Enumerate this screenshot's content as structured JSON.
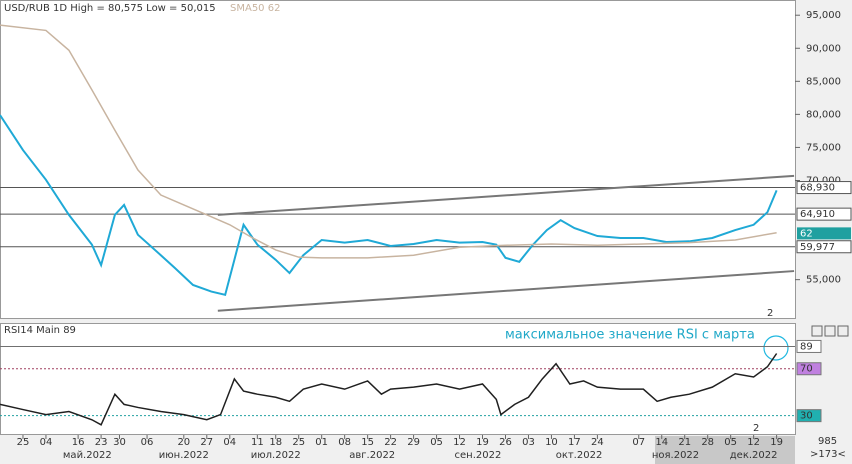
{
  "chart_data": [
    {
      "type": "line",
      "title": "USD/RUB 1D High = 80,575 Low = 50,015",
      "sma_legend": "SMA50 62",
      "xlim": [
        0,
        173
      ],
      "ylim": [
        49.2,
        97.3
      ],
      "yticks": [
        {
          "value": 95,
          "label": "95,000"
        },
        {
          "value": 90,
          "label": "90,000"
        },
        {
          "value": 85,
          "label": "85,000"
        },
        {
          "value": 80,
          "label": "80,000"
        },
        {
          "value": 75,
          "label": "75,000"
        },
        {
          "value": 70,
          "label": "70,000"
        },
        {
          "value": 55,
          "label": "55,000"
        }
      ],
      "series": [
        {
          "name": "USD/RUB",
          "color": "#1fa9d6",
          "x": [
            0,
            5,
            10,
            15,
            20,
            22,
            25,
            27,
            30,
            35,
            38,
            42,
            46,
            49,
            51,
            53,
            56,
            60,
            63,
            66,
            70,
            75,
            80,
            85,
            90,
            95,
            100,
            105,
            108,
            110,
            113,
            116,
            119,
            122,
            125,
            130,
            135,
            140,
            145,
            150,
            155,
            160,
            164,
            167,
            169
          ],
          "values": [
            79.9,
            74.6,
            70.1,
            64.8,
            60.3,
            57.2,
            64.8,
            66.3,
            61.8,
            58.7,
            56.8,
            54.2,
            53.2,
            52.7,
            58.0,
            63.3,
            60.3,
            58.0,
            56.0,
            58.7,
            61.0,
            60.6,
            61.0,
            60.1,
            60.4,
            61.0,
            60.6,
            60.7,
            60.3,
            58.3,
            57.7,
            60.3,
            62.5,
            64.0,
            62.8,
            61.6,
            61.3,
            61.3,
            60.7,
            60.8,
            61.3,
            62.5,
            63.3,
            65.2,
            68.5
          ]
        },
        {
          "name": "SMA50",
          "color": "#c8b4a0",
          "last": 62,
          "x": [
            0,
            10,
            15,
            20,
            25,
            30,
            35,
            40,
            45,
            50,
            55,
            60,
            65,
            70,
            80,
            90,
            100,
            110,
            120,
            130,
            140,
            150,
            160,
            169
          ],
          "values": [
            93.5,
            92.7,
            89.7,
            83.7,
            77.6,
            71.6,
            67.8,
            66.3,
            64.8,
            63.3,
            61.3,
            59.5,
            58.4,
            58.3,
            58.3,
            58.7,
            59.9,
            60.2,
            60.4,
            60.2,
            60.4,
            60.6,
            61.0,
            62.1
          ]
        }
      ],
      "levels": [
        {
          "value": 68.93,
          "label": "68,930"
        },
        {
          "value": 64.91,
          "label": "64,910"
        },
        {
          "value": 59.977,
          "label": "59,977"
        }
      ],
      "trend_lines": [
        {
          "x": [
            47.4,
            172.8
          ],
          "values": [
            64.8,
            70.7
          ]
        },
        {
          "x": [
            47.4,
            172.8
          ],
          "values": [
            50.3,
            56.3
          ]
        }
      ],
      "corner_note": "2"
    },
    {
      "type": "line",
      "title": "RSI14 Main 89",
      "annotation": "максимальное значение RSI с марта",
      "xlim": [
        0,
        173
      ],
      "ylim": [
        13.5,
        109
      ],
      "levels": [
        {
          "value": 89,
          "color": "#707070"
        },
        {
          "value": 70,
          "color": "#a04060"
        },
        {
          "value": 30,
          "color": "#20a0a0"
        }
      ],
      "series": [
        {
          "name": "RSI14",
          "color": "#202020",
          "x": [
            0,
            5,
            10,
            15,
            20,
            22,
            25,
            27,
            30,
            35,
            40,
            45,
            48,
            51,
            53,
            56,
            60,
            63,
            66,
            70,
            75,
            80,
            83,
            85,
            90,
            95,
            100,
            105,
            108,
            109,
            112,
            115,
            118,
            121,
            124,
            127,
            130,
            135,
            140,
            143,
            146,
            150,
            155,
            160,
            164,
            167,
            169
          ],
          "values": [
            39.6,
            35.2,
            30.9,
            33.5,
            26.5,
            22.2,
            48.3,
            39.6,
            37,
            33.5,
            30.9,
            26.5,
            30.9,
            61.3,
            50.9,
            48.3,
            45.7,
            42.2,
            52.6,
            57,
            52.6,
            59.6,
            48.3,
            52.6,
            54.3,
            57,
            52.6,
            57,
            43.9,
            30.9,
            39.6,
            45.7,
            61.3,
            74.3,
            57,
            59.6,
            54.3,
            52.6,
            52.6,
            42.2,
            45.7,
            48.3,
            54.3,
            65.7,
            63,
            71.7,
            83
          ]
        }
      ],
      "xticks": [
        {
          "value": 5,
          "label": "25"
        },
        {
          "value": 10,
          "label": "04"
        },
        {
          "value": 17,
          "label": "16"
        },
        {
          "value": 22,
          "label": "23"
        },
        {
          "value": 26,
          "label": "30"
        },
        {
          "value": 32,
          "label": "06"
        },
        {
          "value": 40,
          "label": "20"
        },
        {
          "value": 45,
          "label": "27"
        },
        {
          "value": 50,
          "label": "04"
        },
        {
          "value": 56,
          "label": "11"
        },
        {
          "value": 60,
          "label": "18"
        },
        {
          "value": 65,
          "label": "25"
        },
        {
          "value": 70,
          "label": "01"
        },
        {
          "value": 75,
          "label": "08"
        },
        {
          "value": 80,
          "label": "15"
        },
        {
          "value": 85,
          "label": "22"
        },
        {
          "value": 90,
          "label": "29"
        },
        {
          "value": 95,
          "label": "05"
        },
        {
          "value": 100,
          "label": "12"
        },
        {
          "value": 105,
          "label": "19"
        },
        {
          "value": 110,
          "label": "26"
        },
        {
          "value": 115,
          "label": "03"
        },
        {
          "value": 120,
          "label": "10"
        },
        {
          "value": 125,
          "label": "17"
        },
        {
          "value": 130,
          "label": "24"
        },
        {
          "value": 139,
          "label": "07"
        },
        {
          "value": 144,
          "label": "14"
        },
        {
          "value": 149,
          "label": "21"
        },
        {
          "value": 154,
          "label": "28"
        },
        {
          "value": 159,
          "label": "05"
        },
        {
          "value": 164,
          "label": "12"
        },
        {
          "value": 169,
          "label": "19"
        }
      ],
      "months": [
        {
          "value": 19,
          "label": "май.2022"
        },
        {
          "value": 40,
          "label": "июн.2022"
        },
        {
          "value": 60,
          "label": "июл.2022"
        },
        {
          "value": 81,
          "label": "авг.2022"
        },
        {
          "value": 104,
          "label": "сен.2022"
        },
        {
          "value": 126,
          "label": "окт.2022"
        },
        {
          "value": 147,
          "label": "ноя.2022"
        },
        {
          "value": 164,
          "label": "дек.2022"
        }
      ],
      "corner_note": "2",
      "footer": [
        "985",
        ">173<"
      ]
    }
  ]
}
